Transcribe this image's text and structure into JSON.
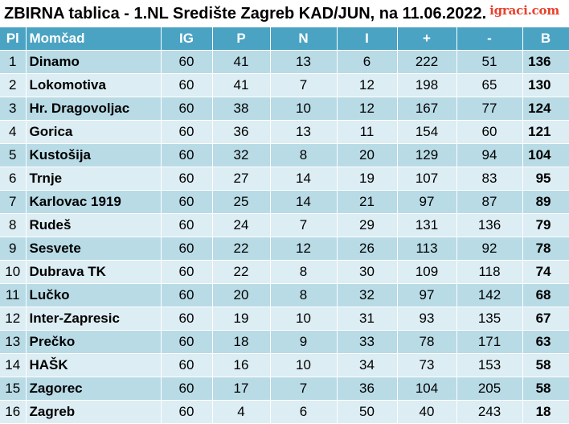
{
  "title": "ZBIRNA tablica - 1.NL Središte Zagreb KAD/JUN, na 11.06.2022.",
  "logo": "igraci.com",
  "headers": {
    "pl": "Pl",
    "team": "Momčad",
    "ig": "IG",
    "p": "P",
    "n": "N",
    "i": "I",
    "plus": "+",
    "minus": "-",
    "b": "B"
  },
  "rows": [
    {
      "pl": "1",
      "team": "Dinamo",
      "ig": "60",
      "p": "41",
      "n": "13",
      "i": "6",
      "plus": "222",
      "minus": "51",
      "b": "136"
    },
    {
      "pl": "2",
      "team": "Lokomotiva",
      "ig": "60",
      "p": "41",
      "n": "7",
      "i": "12",
      "plus": "198",
      "minus": "65",
      "b": "130"
    },
    {
      "pl": "3",
      "team": "Hr. Dragovoljac",
      "ig": "60",
      "p": "38",
      "n": "10",
      "i": "12",
      "plus": "167",
      "minus": "77",
      "b": "124"
    },
    {
      "pl": "4",
      "team": "Gorica",
      "ig": "60",
      "p": "36",
      "n": "13",
      "i": "11",
      "plus": "154",
      "minus": "60",
      "b": "121"
    },
    {
      "pl": "5",
      "team": "Kustošija",
      "ig": "60",
      "p": "32",
      "n": "8",
      "i": "20",
      "plus": "129",
      "minus": "94",
      "b": "104"
    },
    {
      "pl": "6",
      "team": "Trnje",
      "ig": "60",
      "p": "27",
      "n": "14",
      "i": "19",
      "plus": "107",
      "minus": "83",
      "b": "95"
    },
    {
      "pl": "7",
      "team": "Karlovac 1919",
      "ig": "60",
      "p": "25",
      "n": "14",
      "i": "21",
      "plus": "97",
      "minus": "87",
      "b": "89"
    },
    {
      "pl": "8",
      "team": "Rudeš",
      "ig": "60",
      "p": "24",
      "n": "7",
      "i": "29",
      "plus": "131",
      "minus": "136",
      "b": "79"
    },
    {
      "pl": "9",
      "team": "Sesvete",
      "ig": "60",
      "p": "22",
      "n": "12",
      "i": "26",
      "plus": "113",
      "minus": "92",
      "b": "78"
    },
    {
      "pl": "10",
      "team": "Dubrava TK",
      "ig": "60",
      "p": "22",
      "n": "8",
      "i": "30",
      "plus": "109",
      "minus": "118",
      "b": "74"
    },
    {
      "pl": "11",
      "team": "Lučko",
      "ig": "60",
      "p": "20",
      "n": "8",
      "i": "32",
      "plus": "97",
      "minus": "142",
      "b": "68"
    },
    {
      "pl": "12",
      "team": "Inter-Zapresic",
      "ig": "60",
      "p": "19",
      "n": "10",
      "i": "31",
      "plus": "93",
      "minus": "135",
      "b": "67"
    },
    {
      "pl": "13",
      "team": "Prečko",
      "ig": "60",
      "p": "18",
      "n": "9",
      "i": "33",
      "plus": "78",
      "minus": "171",
      "b": "63"
    },
    {
      "pl": "14",
      "team": "HAŠK",
      "ig": "60",
      "p": "16",
      "n": "10",
      "i": "34",
      "plus": "73",
      "minus": "153",
      "b": "58"
    },
    {
      "pl": "15",
      "team": "Zagorec",
      "ig": "60",
      "p": "17",
      "n": "7",
      "i": "36",
      "plus": "104",
      "minus": "205",
      "b": "58"
    },
    {
      "pl": "16",
      "team": "Zagreb",
      "ig": "60",
      "p": "4",
      "n": "6",
      "i": "50",
      "plus": "40",
      "minus": "243",
      "b": "18"
    }
  ],
  "colors": {
    "header_bg": "#4aa3c3",
    "row_odd": "#b8dbe6",
    "row_even": "#dcedf3",
    "logo": "#e8412c"
  }
}
